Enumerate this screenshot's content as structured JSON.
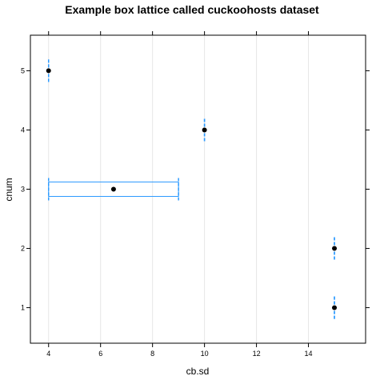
{
  "chart_data": {
    "type": "box",
    "title": "Example box lattice called cuckoohosts dataset",
    "xlabel": "cb.sd",
    "ylabel": "cnum",
    "xlim": [
      3.3,
      16.2
    ],
    "ylim": [
      0.4,
      5.6
    ],
    "x_ticks": [
      4,
      6,
      8,
      10,
      12,
      14
    ],
    "y_ticks": [
      1,
      2,
      3,
      4,
      5
    ],
    "grid": "vertical",
    "orientation": "horizontal",
    "colors": {
      "box": "#2E9BFF",
      "median": "#000000",
      "grid": "#E6E6E6",
      "frame": "#000000"
    },
    "categories": [
      "1",
      "2",
      "3",
      "4",
      "5"
    ],
    "boxes": [
      {
        "category": "1",
        "min": 15,
        "q1": 15,
        "median": 15,
        "q3": 15,
        "max": 15
      },
      {
        "category": "2",
        "min": 15,
        "q1": 15,
        "median": 15,
        "q3": 15,
        "max": 15
      },
      {
        "category": "3",
        "min": 4,
        "q1": 4,
        "median": 6.5,
        "q3": 9,
        "max": 9
      },
      {
        "category": "4",
        "min": 10,
        "q1": 10,
        "median": 10,
        "q3": 10,
        "max": 10
      },
      {
        "category": "5",
        "min": 4,
        "q1": 4,
        "median": 4,
        "q3": 4,
        "max": 4
      }
    ]
  }
}
